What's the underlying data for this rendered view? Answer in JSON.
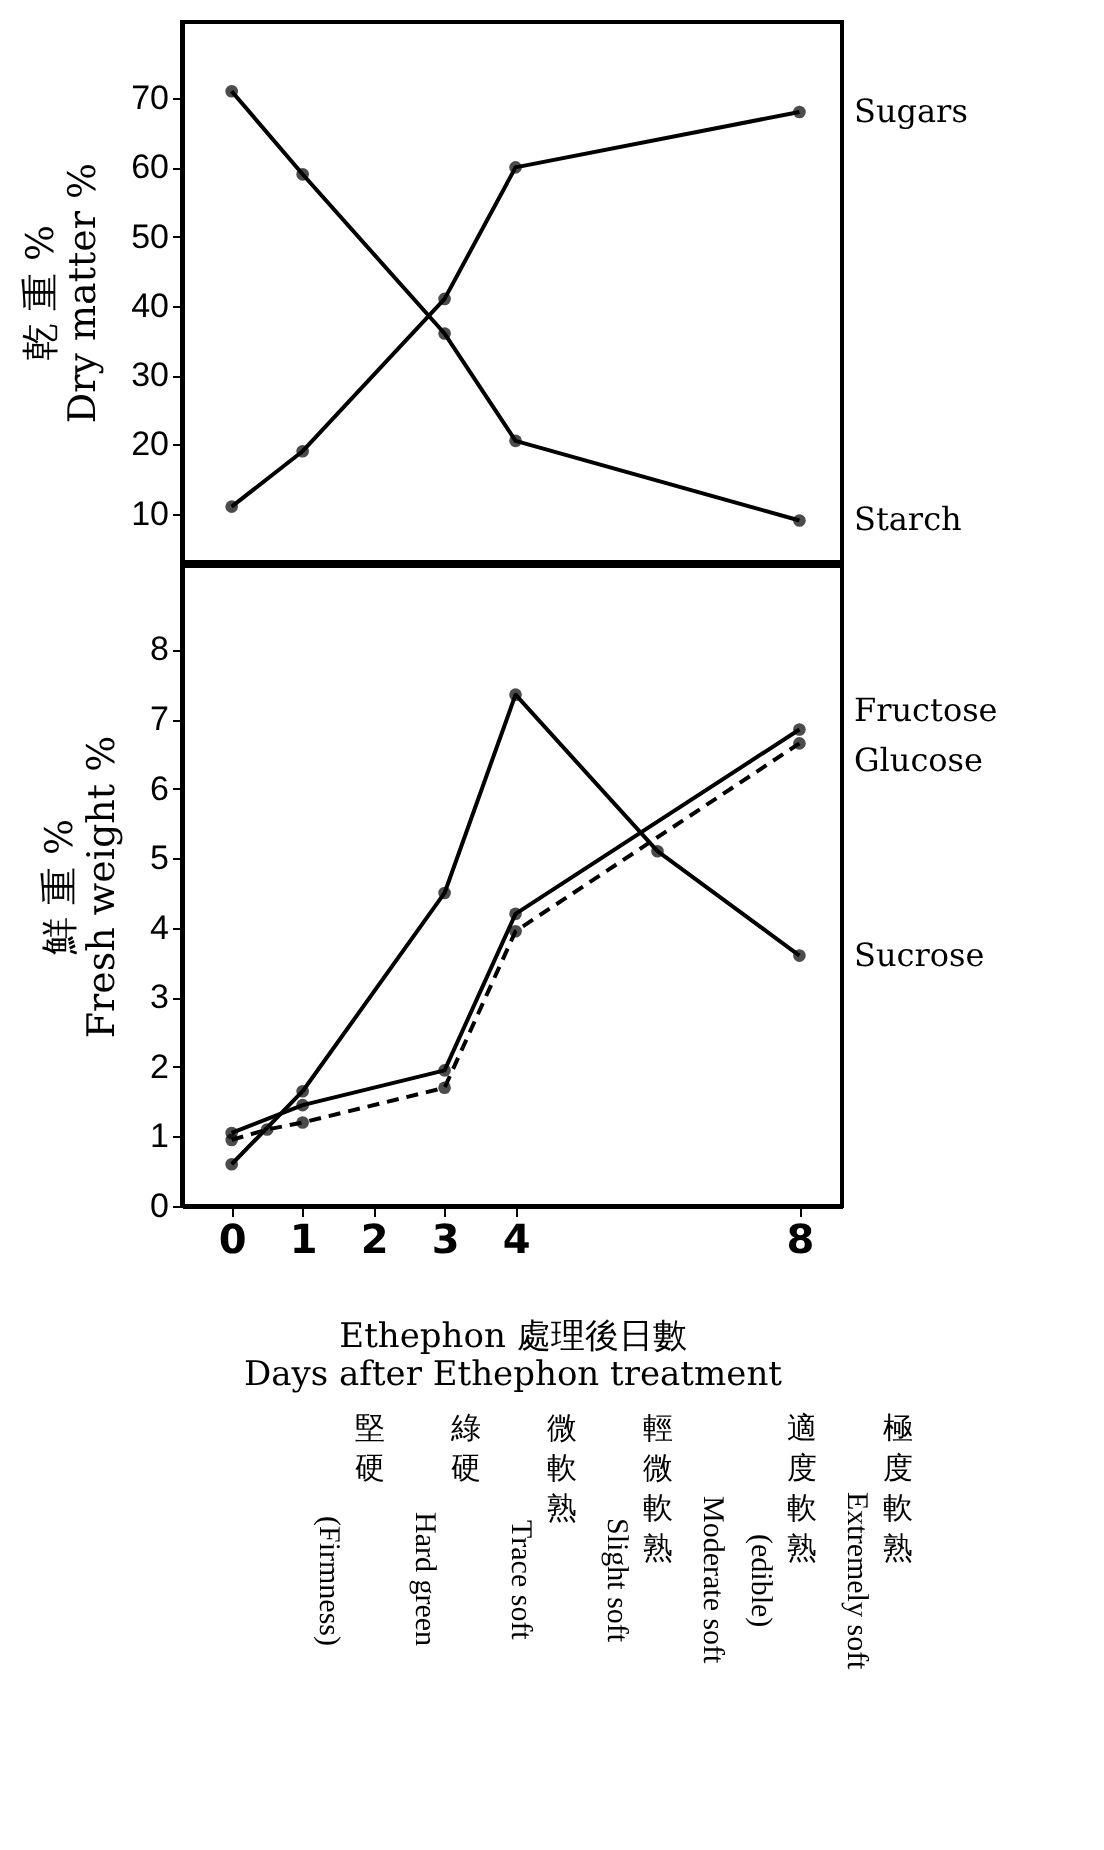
{
  "chart_data": [
    {
      "type": "line",
      "ylabel": "乾 重 %\nDry matter %",
      "ylim": [
        3,
        81
      ],
      "yticks": [
        10,
        20,
        30,
        40,
        50,
        60,
        70
      ],
      "xlim": [
        -0.7,
        8.6
      ],
      "xticks": [
        0,
        1,
        2,
        3,
        4,
        8
      ],
      "tick_labels": "y",
      "grid": false,
      "legend": false,
      "marker": "circle",
      "series": [
        {
          "name": "Sugars",
          "color": "#000000",
          "x": [
            0,
            1,
            3,
            4,
            8
          ],
          "values": [
            11,
            19,
            41,
            60,
            68
          ]
        },
        {
          "name": "Starch",
          "color": "#000000",
          "x": [
            0,
            1,
            3,
            4,
            8
          ],
          "values": [
            71,
            59,
            36,
            20.5,
            9
          ]
        }
      ]
    },
    {
      "type": "line",
      "ylabel": "鮮 重 %\nFresh weight %",
      "xlabel": "Ethephon 處理後日數\nDays after Ethephon treatment",
      "ylim": [
        0,
        9.2
      ],
      "yticks": [
        0,
        1,
        2,
        3,
        4,
        5,
        6,
        7,
        8
      ],
      "xlim": [
        -0.7,
        8.6
      ],
      "xticks": [
        0,
        1,
        2,
        3,
        4,
        8
      ],
      "grid": false,
      "legend": false,
      "marker": "circle",
      "annotations": [
        "(Firmness)",
        "堅硬",
        "Hard green",
        "綠硬",
        "Trace soft",
        "微軟熟",
        "Slight soft",
        "輕微軟熟",
        "Moderate soft",
        "(edible)",
        "適度軟熟",
        "Extremely soft",
        "極度軟熟"
      ],
      "series": [
        {
          "name": "Sucrose",
          "color": "#000000",
          "x": [
            0,
            1,
            3,
            4,
            6,
            8
          ],
          "values": [
            0.6,
            1.65,
            4.5,
            7.35,
            5.1,
            3.6
          ]
        },
        {
          "name": "Fructose",
          "color": "#000000",
          "x": [
            0,
            1,
            3,
            4,
            8
          ],
          "values": [
            1.05,
            1.45,
            1.95,
            4.2,
            6.85
          ]
        },
        {
          "name": "Glucose",
          "color": "#000000",
          "line_style": "dashed",
          "x": [
            0,
            0.5,
            1,
            3,
            4,
            8
          ],
          "values": [
            0.95,
            1.1,
            1.2,
            1.7,
            3.95,
            6.65
          ]
        }
      ]
    }
  ]
}
